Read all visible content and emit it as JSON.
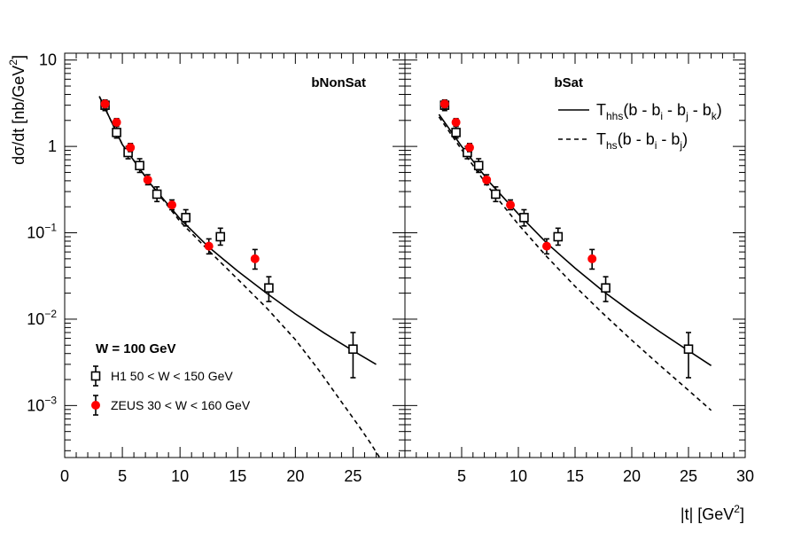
{
  "chart_data": {
    "type": "scatter",
    "xlabel": "|t|",
    "xlabel_unit": "[GeV",
    "xlabel_sup": "2",
    "xlabel_close": "]",
    "ylabel": "dσ/dt  [nb/GeV",
    "ylabel_sup": "2",
    "ylabel_close": "]",
    "yscale": "log",
    "ylim": [
      0.00025,
      12
    ],
    "y_ticks": [
      {
        "value": 10,
        "base": "10",
        "exp": ""
      },
      {
        "value": 1,
        "base": "1",
        "exp": ""
      },
      {
        "value": 0.1,
        "base": "10",
        "exp": "−1"
      },
      {
        "value": 0.01,
        "base": "10",
        "exp": "−2"
      },
      {
        "value": 0.001,
        "base": "10",
        "exp": "−3"
      }
    ],
    "panels": [
      {
        "title": "bNonSat",
        "xlim": [
          0,
          29.5
        ],
        "x_ticks": [
          "0",
          "5",
          "10",
          "15",
          "20",
          "25"
        ],
        "x_tick_values": [
          0,
          5,
          10,
          15,
          20,
          25
        ]
      },
      {
        "title": "bSat",
        "xlim": [
          0,
          30
        ],
        "x_ticks": [
          "5",
          "10",
          "15",
          "20",
          "25",
          "30"
        ],
        "x_tick_values": [
          5,
          10,
          15,
          20,
          25,
          30
        ]
      }
    ],
    "annotation": "W = 100 GeV",
    "legend_left": [
      {
        "label": "H1 50 < W < 150 GeV",
        "marker": "open-square"
      },
      {
        "label": "ZEUS 30 < W < 160 GeV",
        "marker": "red-circle"
      }
    ],
    "legend_right": [
      {
        "label_main": "T",
        "label_sub": "hhs",
        "label_rest": "(b - b",
        "parts": [
          "i",
          " - b",
          "j",
          " - b",
          "k",
          ")"
        ],
        "style": "solid"
      },
      {
        "label_main": "T",
        "label_sub": "hs",
        "label_rest": "(b - b",
        "parts": [
          "i",
          " - b",
          "j",
          ")"
        ],
        "style": "dashed"
      }
    ],
    "series": [
      {
        "name": "H1 50 < W < 150 GeV",
        "marker": "open-square",
        "points": [
          {
            "x": 3.5,
            "y": 3.0,
            "lo": 2.6,
            "hi": 3.4
          },
          {
            "x": 4.5,
            "y": 1.45,
            "lo": 1.25,
            "hi": 1.7
          },
          {
            "x": 5.5,
            "y": 0.85,
            "lo": 0.72,
            "hi": 1.0
          },
          {
            "x": 6.5,
            "y": 0.6,
            "lo": 0.5,
            "hi": 0.72
          },
          {
            "x": 8.0,
            "y": 0.28,
            "lo": 0.23,
            "hi": 0.34
          },
          {
            "x": 10.5,
            "y": 0.15,
            "lo": 0.12,
            "hi": 0.185
          },
          {
            "x": 13.5,
            "y": 0.09,
            "lo": 0.072,
            "hi": 0.113
          },
          {
            "x": 17.7,
            "y": 0.023,
            "lo": 0.016,
            "hi": 0.031
          },
          {
            "x": 25.0,
            "y": 0.0045,
            "lo": 0.0021,
            "hi": 0.007
          }
        ]
      },
      {
        "name": "ZEUS 30 < W < 160 GeV",
        "marker": "red-circle",
        "points": [
          {
            "x": 3.5,
            "y": 3.1,
            "lo": 2.8,
            "hi": 3.45
          },
          {
            "x": 4.5,
            "y": 1.9,
            "lo": 1.7,
            "hi": 2.1
          },
          {
            "x": 5.7,
            "y": 0.97,
            "lo": 0.87,
            "hi": 1.08
          },
          {
            "x": 7.2,
            "y": 0.41,
            "lo": 0.36,
            "hi": 0.47
          },
          {
            "x": 9.3,
            "y": 0.21,
            "lo": 0.185,
            "hi": 0.24
          },
          {
            "x": 12.5,
            "y": 0.07,
            "lo": 0.057,
            "hi": 0.085
          },
          {
            "x": 16.5,
            "y": 0.05,
            "lo": 0.038,
            "hi": 0.064
          }
        ]
      }
    ],
    "curves": [
      {
        "panel": 0,
        "style": "solid",
        "x": [
          3,
          5,
          7.5,
          10,
          12.5,
          15,
          17.5,
          20,
          22.5,
          25,
          27
        ],
        "y": [
          3.8,
          1.05,
          0.36,
          0.145,
          0.068,
          0.036,
          0.02,
          0.0115,
          0.0069,
          0.0043,
          0.003
        ]
      },
      {
        "panel": 0,
        "style": "dashed",
        "x": [
          3,
          5,
          7.5,
          10,
          12.5,
          15,
          17.5,
          20,
          22,
          24,
          25.5,
          26.5,
          27.3
        ],
        "y": [
          3.8,
          1.05,
          0.36,
          0.135,
          0.062,
          0.029,
          0.0135,
          0.0058,
          0.0026,
          0.0011,
          0.00058,
          0.00037,
          0.00025
        ]
      },
      {
        "panel": 1,
        "style": "solid",
        "x": [
          3,
          5,
          7.5,
          10,
          12.5,
          15,
          17.5,
          20,
          22.5,
          25,
          27
        ],
        "y": [
          2.35,
          1.0,
          0.38,
          0.165,
          0.076,
          0.039,
          0.021,
          0.012,
          0.0071,
          0.0043,
          0.0029
        ]
      },
      {
        "panel": 1,
        "style": "dashed",
        "x": [
          3,
          5,
          7.5,
          10,
          12.5,
          15,
          17.5,
          20,
          22.5,
          25,
          27
        ],
        "y": [
          2.2,
          0.92,
          0.32,
          0.125,
          0.053,
          0.024,
          0.0115,
          0.0057,
          0.0029,
          0.0015,
          0.00088
        ]
      }
    ]
  }
}
